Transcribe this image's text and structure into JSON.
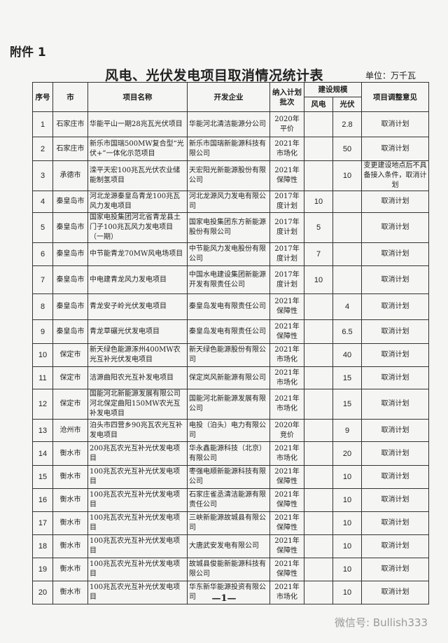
{
  "document": {
    "attachment_label": "附件 1",
    "title": "风电、光伏发电项目取消情况统计表",
    "unit": "单位：万千瓦",
    "page_number": "—1—",
    "watermark": "微信号: Bullish333"
  },
  "table": {
    "headers": {
      "seq": "序号",
      "city": "市",
      "project": "项目名称",
      "developer": "开发企业",
      "batch": "纳入计划批次",
      "scale": "建设规模",
      "wind": "风电",
      "solar": "光伏",
      "opinion": "项目调整意见"
    },
    "rows": [
      {
        "seq": "1",
        "city": "石家庄市",
        "project": "华能平山一期28兆瓦光伏项目",
        "developer": "华能河北清洁能源分公司",
        "batch": "2020年平价",
        "wind": "",
        "solar": "2.8",
        "opinion": "取消计划"
      },
      {
        "seq": "2",
        "city": "石家庄市",
        "project": "新乐市国瑞500MW复合型“光伏+”一体化示范项目",
        "developer": "新乐市国瑞新能源科技有限公司",
        "batch": "2021年市场化",
        "wind": "",
        "solar": "50",
        "opinion": "取消计划"
      },
      {
        "seq": "3",
        "city": "承德市",
        "project": "滦平天宏100兆瓦光伏农业储能制氢项目",
        "developer": "天宏阳光新能源股份有限公司",
        "batch": "2021年保障性",
        "wind": "",
        "solar": "10",
        "opinion": "变更建设地点后不具备接入条件，取消计划"
      },
      {
        "seq": "4",
        "city": "秦皇岛市",
        "project": "河北龙源秦皇岛青龙100兆瓦风力发电项目",
        "developer": "河北龙源风力发电有限公司",
        "batch": "2017年度计划",
        "wind": "10",
        "solar": "",
        "opinion": "取消计划"
      },
      {
        "seq": "5",
        "city": "秦皇岛市",
        "project": "国家电投集团河北省青龙县土门子100兆瓦风力发电项目（一期）",
        "developer": "国家电投集团东方新能源股份有限公司",
        "batch": "2017年度计划",
        "wind": "5",
        "solar": "",
        "opinion": "取消计划"
      },
      {
        "seq": "6",
        "city": "秦皇岛市",
        "project": "中节能青龙70MW风电场项目",
        "developer": "中节能风力发电股份有限公司",
        "batch": "2017年度计划",
        "wind": "7",
        "solar": "",
        "opinion": "取消计划"
      },
      {
        "seq": "7",
        "city": "秦皇岛市",
        "project": "中电建青龙风力发电项目",
        "developer": "中国水电建设集团新能源开发有限责任公司",
        "batch": "2017年度计划",
        "wind": "10",
        "solar": "",
        "opinion": "取消计划"
      },
      {
        "seq": "8",
        "city": "秦皇岛市",
        "project": "青龙安子岭光伏发电项目",
        "developer": "秦皇岛发电有限责任公司",
        "batch": "2021年保障性",
        "wind": "",
        "solar": "4",
        "opinion": "取消计划"
      },
      {
        "seq": "9",
        "city": "秦皇岛市",
        "project": "青龙草碾光伏发电项目",
        "developer": "秦皇岛发电有限责任公司",
        "batch": "2021年保障性",
        "wind": "",
        "solar": "6.5",
        "opinion": "取消计划"
      },
      {
        "seq": "10",
        "city": "保定市",
        "project": "新天绿色能源涿州400MW农光互补光伏发电项目",
        "developer": "新天绿色能源股份有限公司",
        "batch": "2021年市场化",
        "wind": "",
        "solar": "40",
        "opinion": "取消计划"
      },
      {
        "seq": "11",
        "city": "保定市",
        "project": "洁源曲阳农光互补发电项目",
        "developer": "保定岚风新能源有限公司",
        "batch": "2021年市场化",
        "wind": "",
        "solar": "15",
        "opinion": "取消计划"
      },
      {
        "seq": "12",
        "city": "保定市",
        "project": "国能河北新能源发展有限公司河北保定曲阳150MW农光互补发电项目",
        "developer": "国能河北新能源发展有限公司",
        "batch": "2021年市场化",
        "wind": "",
        "solar": "15",
        "opinion": "取消计划"
      },
      {
        "seq": "13",
        "city": "沧州市",
        "project": "泊头市四营乡90兆瓦农光互补发电项目",
        "developer": "电投（泊头）电力有限公司",
        "batch": "2020年竞价",
        "wind": "",
        "solar": "9",
        "opinion": "取消计划"
      },
      {
        "seq": "14",
        "city": "衡水市",
        "project": "200兆瓦农光互补光伏发电项目",
        "developer": "华永鑫能源科技（北京）有限公司",
        "batch": "2021年市场化",
        "wind": "",
        "solar": "20",
        "opinion": "取消计划"
      },
      {
        "seq": "15",
        "city": "衡水市",
        "project": "100兆瓦农光互补光伏发电项目",
        "developer": "枣强电顺新能源科技有限公司",
        "batch": "2021年保障性",
        "wind": "",
        "solar": "10",
        "opinion": "取消计划"
      },
      {
        "seq": "16",
        "city": "衡水市",
        "project": "100兆瓦农光互补光伏发电项目",
        "developer": "石家庄雀丞清洁能源有限责任公司",
        "batch": "2021年保障性",
        "wind": "",
        "solar": "10",
        "opinion": "取消计划"
      },
      {
        "seq": "17",
        "city": "衡水市",
        "project": "100兆瓦农光互补光伏发电项目",
        "developer": "三峡新能源故城县有限公司",
        "batch": "2021年保障性",
        "wind": "",
        "solar": "10",
        "opinion": "取消计划"
      },
      {
        "seq": "18",
        "city": "衡水市",
        "project": "100兆瓦农光互补光伏发电项目",
        "developer": "大唐武安发电有限公司",
        "batch": "2021年保障性",
        "wind": "",
        "solar": "10",
        "opinion": "取消计划"
      },
      {
        "seq": "19",
        "city": "衡水市",
        "project": "100兆瓦农光互补光伏发电项目",
        "developer": "故城县俊能新能源科技有限公司",
        "batch": "2021年保障性",
        "wind": "",
        "solar": "10",
        "opinion": "取消计划"
      },
      {
        "seq": "20",
        "city": "衡水市",
        "project": "100兆瓦农光互补光伏发电项目",
        "developer": "华东新华能源投资有限公司",
        "batch": "2021年市场化",
        "wind": "",
        "solar": "10",
        "opinion": "取消计划"
      }
    ]
  }
}
